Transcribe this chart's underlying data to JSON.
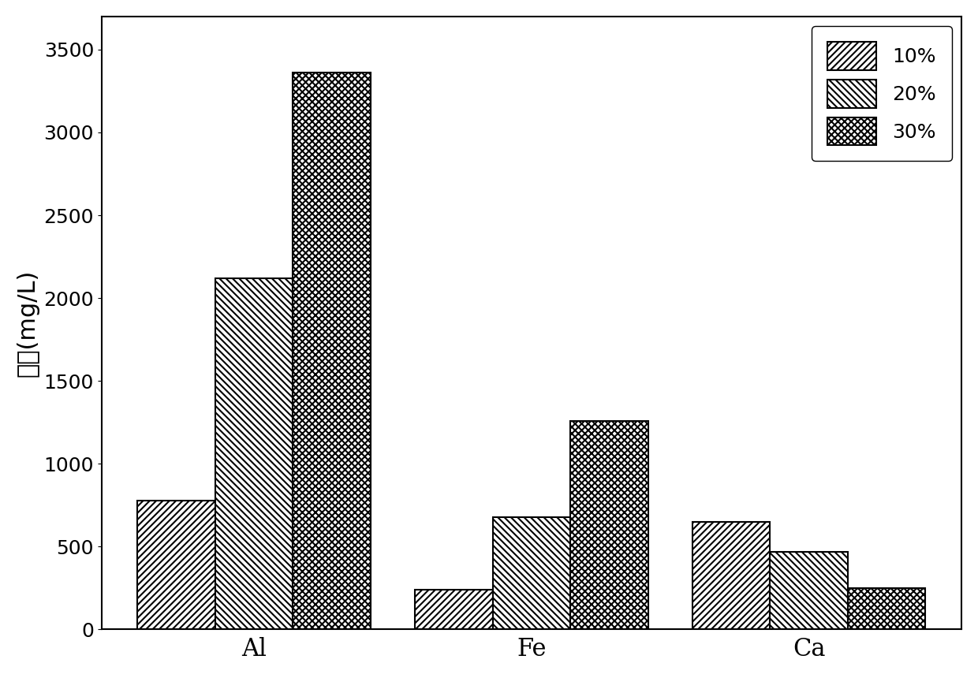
{
  "categories": [
    "Al",
    "Fe",
    "Ca"
  ],
  "series": [
    {
      "label": "10%",
      "values": [
        780,
        240,
        650
      ],
      "hatch": "////"
    },
    {
      "label": "20%",
      "values": [
        2120,
        680,
        470
      ],
      "hatch": "\\\\\\\\"
    },
    {
      "label": "30%",
      "values": [
        3360,
        1260,
        250
      ],
      "hatch": "xxxx"
    }
  ],
  "bar_color": "white",
  "bar_edgecolor": "black",
  "ylabel": "浓度(mg/L)",
  "ylim": [
    0,
    3700
  ],
  "yticks": [
    0,
    500,
    1000,
    1500,
    2000,
    2500,
    3000,
    3500
  ],
  "bar_width": 0.28,
  "legend_fontsize": 18,
  "ylabel_fontsize": 22,
  "tick_fontsize": 18,
  "xlabel_fontsize": 22,
  "legend_loc": "upper right",
  "background_color": "#ffffff",
  "linewidth": 1.5,
  "hatch_linewidth": 1.5
}
